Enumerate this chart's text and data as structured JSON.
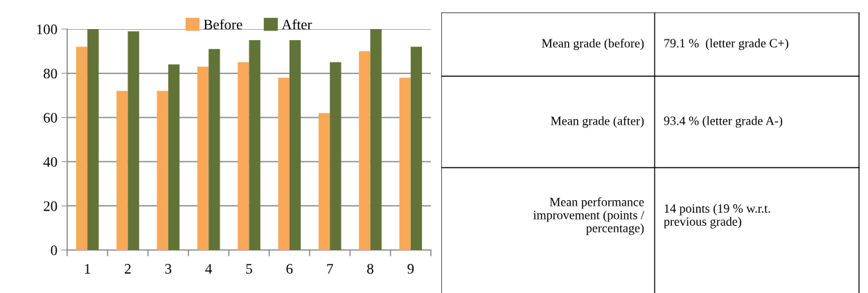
{
  "chart_data": [
    {
      "type": "bar",
      "categories": [
        "1",
        "2",
        "3",
        "4",
        "5",
        "6",
        "7",
        "8",
        "9"
      ],
      "series": [
        {
          "name": "Before",
          "color": "#f9a857",
          "values": [
            92,
            72,
            72,
            83,
            85,
            78,
            62,
            90,
            78
          ]
        },
        {
          "name": "After",
          "color": "#627337",
          "values": [
            100,
            99,
            84,
            91,
            95,
            95,
            85,
            100,
            92
          ]
        }
      ],
      "ylim": [
        0,
        100
      ],
      "yticks": [
        0,
        20,
        40,
        60,
        80,
        100
      ],
      "grid": "y",
      "legend": "top"
    },
    {
      "type": "other",
      "annotations": [
        "Mean grade (before)",
        "79.1 %  (letter grade C+)",
        "Mean grade (after)",
        "93.4 % (letter grade A-)",
        "Mean performance\nimprovement (points /\npercentage)",
        "14 points (19 % w.r.t.\nprevious grade)"
      ]
    }
  ]
}
